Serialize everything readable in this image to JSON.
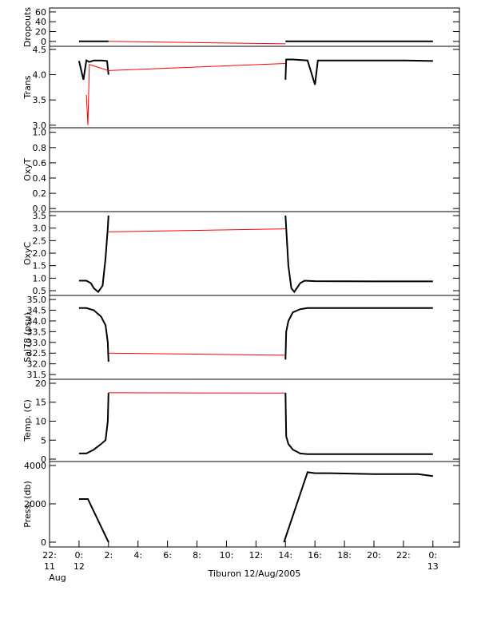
{
  "chart_data": [
    {
      "type": "line",
      "ylabel": "Dropouts",
      "ylim": [
        -10,
        68
      ],
      "yticks": [
        0,
        20,
        40,
        60
      ],
      "series": [
        {
          "color": "#000000",
          "x": [
            0,
            2,
            8,
            14,
            24
          ],
          "values": [
            0,
            0,
            null,
            0,
            0
          ]
        },
        {
          "color": "#ff0000",
          "x": [
            2,
            14
          ],
          "values": [
            0,
            -5
          ]
        }
      ]
    },
    {
      "type": "line",
      "ylabel": "Trans",
      "ylim": [
        2.95,
        4.56
      ],
      "yticks": [
        {
          "value": 3.0,
          "label": "3.0"
        },
        3.5,
        {
          "value": 4.0,
          "label": "4.0"
        },
        4.5
      ],
      "series": [
        {
          "color": "#000000",
          "x": [
            0,
            0.3,
            0.5,
            0.7,
            1,
            1.5,
            1.9,
            2.0,
            8,
            14,
            14.05,
            14.5,
            15,
            15.5,
            16,
            16.2,
            17,
            18,
            20,
            22,
            24
          ],
          "values": [
            4.27,
            3.9,
            4.28,
            4.25,
            4.28,
            4.28,
            4.27,
            4.0,
            null,
            3.9,
            4.3,
            4.3,
            4.29,
            4.28,
            3.8,
            4.28,
            4.28,
            4.28,
            4.28,
            4.28,
            4.27
          ]
        },
        {
          "color": "#ff0000",
          "x": [
            0.5,
            0.6,
            0.7,
            2,
            14
          ],
          "values": [
            3.6,
            3.0,
            4.2,
            4.08,
            4.22
          ]
        }
      ]
    },
    {
      "type": "line",
      "ylabel": "OxyT",
      "ylim": [
        -0.04,
        1.06
      ],
      "yticks": [
        {
          "value": 0.0,
          "label": "0.0"
        },
        0.2,
        0.4,
        0.6,
        0.8,
        {
          "value": 1.0,
          "label": "1.0"
        }
      ],
      "series": []
    },
    {
      "type": "line",
      "ylabel": "OxyC",
      "ylim": [
        0.31,
        3.66
      ],
      "yticks": [
        0.5,
        {
          "value": 1.0,
          "label": "1.0"
        },
        1.5,
        {
          "value": 2.0,
          "label": "2.0"
        },
        2.5,
        {
          "value": 3.0,
          "label": "3.0"
        },
        3.5
      ],
      "series": [
        {
          "color": "#000000",
          "x": [
            0,
            0.5,
            0.8,
            1.0,
            1.3,
            1.6,
            1.8,
            1.95,
            2.0,
            8,
            14,
            14.05,
            14.2,
            14.4,
            14.6,
            15,
            15.3,
            16,
            20,
            24
          ],
          "values": [
            0.9,
            0.9,
            0.8,
            0.6,
            0.45,
            0.7,
            1.8,
            3.0,
            3.5,
            null,
            3.5,
            3.0,
            1.5,
            0.6,
            0.45,
            0.8,
            0.9,
            0.88,
            0.87,
            0.87
          ]
        },
        {
          "color": "#ff0000",
          "x": [
            2,
            14
          ],
          "values": [
            2.85,
            2.97
          ]
        }
      ]
    },
    {
      "type": "line",
      "ylabel": "Sal78 (psu)",
      "ylim": [
        31.28,
        35.19
      ],
      "yticks": [
        31.5,
        {
          "value": 32.0,
          "label": "32.0"
        },
        32.5,
        {
          "value": 33.0,
          "label": "33.0"
        },
        33.5,
        {
          "value": 34.0,
          "label": "34.0"
        },
        34.5,
        {
          "value": 35.0,
          "label": "35.0"
        }
      ],
      "series": [
        {
          "color": "#000000",
          "x": [
            0,
            0.5,
            1,
            1.5,
            1.8,
            1.95,
            2.0,
            8,
            14,
            14.05,
            14.2,
            14.5,
            15,
            15.5,
            16,
            20,
            24
          ],
          "values": [
            34.6,
            34.6,
            34.5,
            34.2,
            33.8,
            33.0,
            32.1,
            null,
            32.2,
            33.5,
            34.0,
            34.4,
            34.55,
            34.6,
            34.6,
            34.6,
            34.6
          ]
        },
        {
          "color": "#ff0000",
          "x": [
            2,
            14
          ],
          "values": [
            32.5,
            32.4
          ]
        }
      ]
    },
    {
      "type": "line",
      "ylabel": "Temp. (C)",
      "ylim": [
        -0.63,
        21.05
      ],
      "yticks": [
        0,
        5,
        10,
        15,
        20
      ],
      "series": [
        {
          "color": "#000000",
          "x": [
            0,
            0.5,
            1,
            1.5,
            1.8,
            1.95,
            2.0,
            8,
            14,
            14.05,
            14.2,
            14.5,
            15,
            15.5,
            16,
            20,
            24
          ],
          "values": [
            1.5,
            1.5,
            2.5,
            4,
            5,
            10,
            17.5,
            null,
            17.5,
            6,
            4,
            2.5,
            1.5,
            1.3,
            1.3,
            1.3,
            1.3
          ]
        },
        {
          "color": "#ff0000",
          "x": [
            2,
            14
          ],
          "values": [
            17.5,
            17.4
          ]
        }
      ]
    },
    {
      "type": "line",
      "ylabel": "Press. (db)",
      "ylim": [
        -250,
        4208
      ],
      "yticks": [
        0,
        2000,
        4000
      ],
      "xlim": [
        -2,
        25.8
      ],
      "xlabel": "Tiburon 12/Aug/2005",
      "xticks": [
        {
          "value": -2,
          "label": "22:"
        },
        {
          "value": 0,
          "label": "0:"
        },
        {
          "value": 2,
          "label": "2:"
        },
        {
          "value": 4,
          "label": "4:"
        },
        {
          "value": 6,
          "label": "6:"
        },
        {
          "value": 8,
          "label": "8:"
        },
        {
          "value": 10,
          "label": "10:"
        },
        {
          "value": 12,
          "label": "12:"
        },
        {
          "value": 14,
          "label": "14:"
        },
        {
          "value": 16,
          "label": "16:"
        },
        {
          "value": 18,
          "label": "18:"
        },
        {
          "value": 20,
          "label": "20:"
        },
        {
          "value": 22,
          "label": "22:"
        },
        {
          "value": 24,
          "label": "0:"
        }
      ],
      "xday_labels": [
        {
          "value": -2,
          "label": "11"
        },
        {
          "value": 0,
          "label": "12"
        },
        {
          "value": 24,
          "label": "13"
        }
      ],
      "xmonth_labels": [
        {
          "value": -2,
          "label": "Aug"
        }
      ],
      "series": [
        {
          "color": "#000000",
          "x": [
            0,
            0.6,
            2.0,
            8,
            13.9,
            15.5,
            16,
            17,
            20,
            22,
            23,
            24
          ],
          "values": [
            2250,
            2250,
            0,
            null,
            0,
            3650,
            3600,
            3600,
            3550,
            3550,
            3550,
            3450
          ]
        }
      ]
    }
  ]
}
